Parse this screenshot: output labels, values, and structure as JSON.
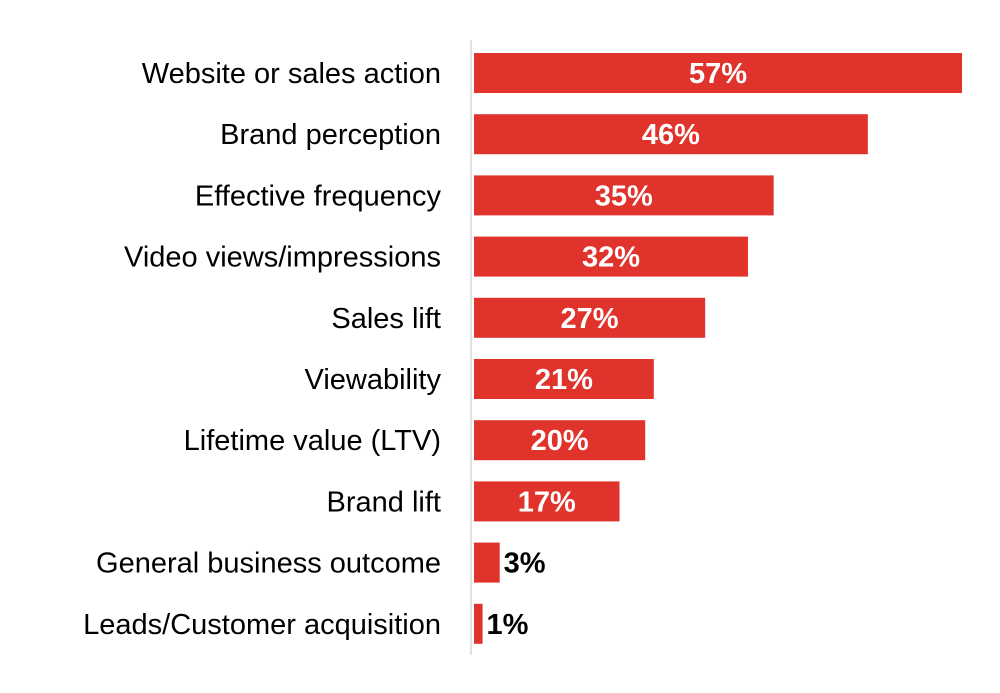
{
  "chart_data": {
    "type": "bar",
    "orientation": "horizontal",
    "categories": [
      "Website or sales action",
      "Brand perception",
      "Effective frequency",
      "Video views/impressions",
      "Sales lift",
      "Viewability",
      "Lifetime value (LTV)",
      "Brand lift",
      "General business outcome",
      "Leads/Customer acquisition"
    ],
    "values": [
      57,
      46,
      35,
      32,
      27,
      21,
      20,
      17,
      3,
      1
    ],
    "value_labels": [
      "57%",
      "46%",
      "35%",
      "32%",
      "27%",
      "21%",
      "20%",
      "17%",
      "3%",
      "1%"
    ],
    "unit": "%",
    "xlim": [
      0,
      57
    ],
    "grid": false,
    "legend": "none",
    "colors": {
      "bar": "#e0332b",
      "label_inside": "#ffffff",
      "label_outside": "#000000",
      "axis": "#d9d9d9"
    }
  }
}
